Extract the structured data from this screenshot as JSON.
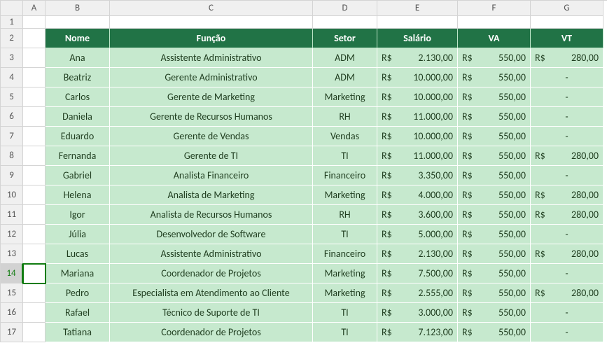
{
  "colors": {
    "header_bg": "#217346",
    "header_fg": "#ffffff",
    "data_bg": "#c6e9ce",
    "data_fg": "#1f3d1f",
    "grid_line": "#d4d4d4",
    "select_green": "#107c10"
  },
  "column_letters": [
    "A",
    "B",
    "C",
    "D",
    "E",
    "F",
    "G"
  ],
  "row_numbers": [
    "1",
    "2",
    "3",
    "4",
    "5",
    "6",
    "7",
    "8",
    "9",
    "10",
    "11",
    "12",
    "13",
    "14",
    "15",
    "16",
    "17"
  ],
  "selected_row_index": 13,
  "headers": {
    "nome": "Nome",
    "funcao": "Função",
    "setor": "Setor",
    "salario": "Salário",
    "va": "VA",
    "vt": "VT"
  },
  "currency_prefix": "R$",
  "dash": "-",
  "rows": [
    {
      "nome": "Ana",
      "funcao": "Assistente Administrativo",
      "setor": "ADM",
      "salario": "2.130,00",
      "va": "550,00",
      "vt": "280,00"
    },
    {
      "nome": "Beatriz",
      "funcao": "Gerente Administrativo",
      "setor": "ADM",
      "salario": "10.000,00",
      "va": "550,00",
      "vt": null
    },
    {
      "nome": "Carlos",
      "funcao": "Gerente de Marketing",
      "setor": "Marketing",
      "salario": "10.000,00",
      "va": "550,00",
      "vt": null
    },
    {
      "nome": "Daniela",
      "funcao": "Gerente de Recursos Humanos",
      "setor": "RH",
      "salario": "11.000,00",
      "va": "550,00",
      "vt": null
    },
    {
      "nome": "Eduardo",
      "funcao": "Gerente de Vendas",
      "setor": "Vendas",
      "salario": "10.000,00",
      "va": "550,00",
      "vt": null
    },
    {
      "nome": "Fernanda",
      "funcao": "Gerente de TI",
      "setor": "TI",
      "salario": "11.000,00",
      "va": "550,00",
      "vt": "280,00"
    },
    {
      "nome": "Gabriel",
      "funcao": "Analista Financeiro",
      "setor": "Financeiro",
      "salario": "3.350,00",
      "va": "550,00",
      "vt": null
    },
    {
      "nome": "Helena",
      "funcao": "Analista de Marketing",
      "setor": "Marketing",
      "salario": "4.000,00",
      "va": "550,00",
      "vt": "280,00"
    },
    {
      "nome": "Igor",
      "funcao": "Analista de Recursos Humanos",
      "setor": "RH",
      "salario": "3.600,00",
      "va": "550,00",
      "vt": "280,00"
    },
    {
      "nome": "Júlia",
      "funcao": "Desenvolvedor de Software",
      "setor": "TI",
      "salario": "5.000,00",
      "va": "550,00",
      "vt": null
    },
    {
      "nome": "Lucas",
      "funcao": "Assistente Administrativo",
      "setor": "Financeiro",
      "salario": "2.130,00",
      "va": "550,00",
      "vt": "280,00"
    },
    {
      "nome": "Mariana",
      "funcao": "Coordenador de Projetos",
      "setor": "Marketing",
      "salario": "7.500,00",
      "va": "550,00",
      "vt": null
    },
    {
      "nome": "Pedro",
      "funcao": "Especialista em Atendimento ao Cliente",
      "setor": "Marketing",
      "salario": "2.555,00",
      "va": "550,00",
      "vt": "280,00"
    },
    {
      "nome": "Rafael",
      "funcao": "Técnico de Suporte de TI",
      "setor": "TI",
      "salario": "3.000,00",
      "va": "550,00",
      "vt": null
    },
    {
      "nome": "Tatiana",
      "funcao": "Coordenador de Projetos",
      "setor": "TI",
      "salario": "7.123,00",
      "va": "550,00",
      "vt": null
    }
  ]
}
